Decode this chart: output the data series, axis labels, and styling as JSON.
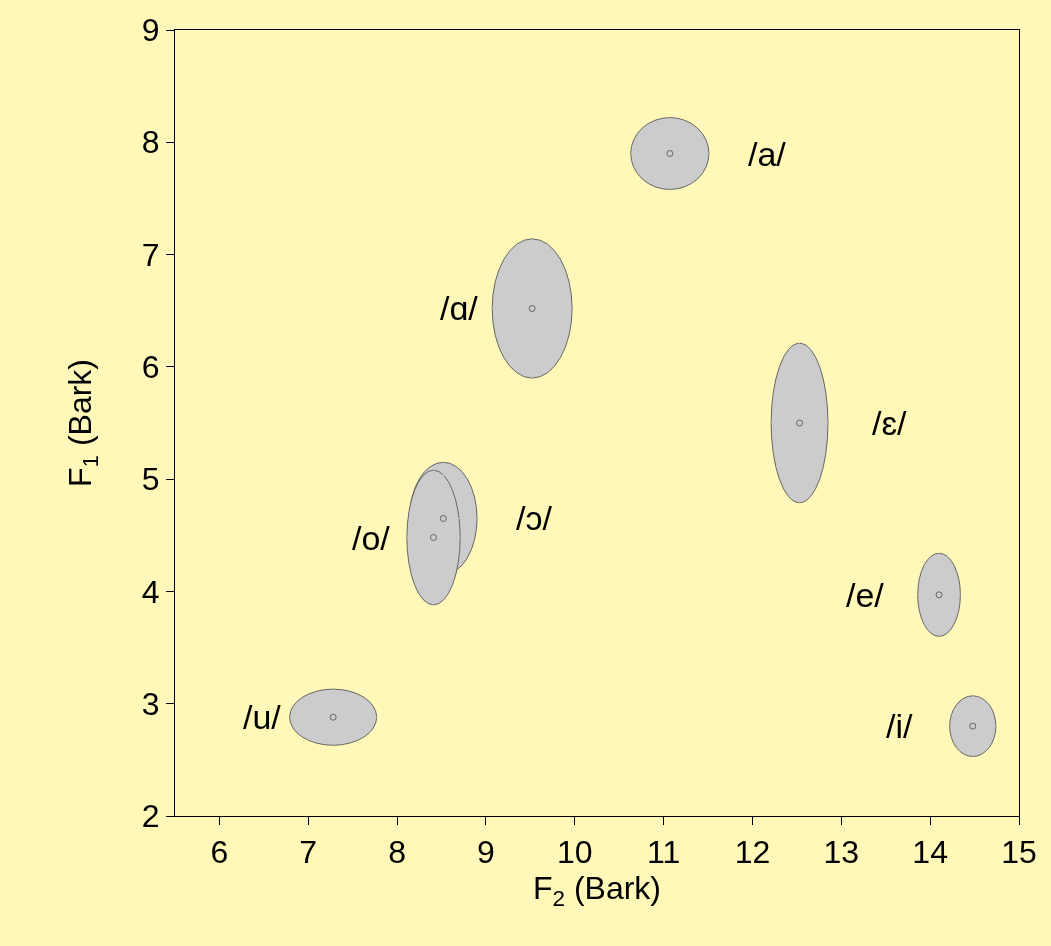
{
  "chart_data": {
    "type": "scatter",
    "xlabel": "F$_{2}$ (Bark)",
    "ylabel": "F$_{1}$ (Bark)",
    "xlim": [
      5.5,
      15
    ],
    "xticks": [
      6,
      7,
      8,
      9,
      10,
      11,
      12,
      13,
      14,
      15
    ],
    "ylim": [
      2,
      9
    ],
    "yticks": [
      2,
      3,
      4,
      5,
      6,
      7,
      8,
      9
    ],
    "grid": false,
    "series": [
      {
        "color": "#cccccc",
        "x": [
          11.07,
          9.52,
          12.53,
          8.52,
          8.41,
          14.1,
          14.48,
          7.28
        ],
        "values": [
          7.9,
          6.52,
          5.5,
          4.65,
          4.48,
          3.97,
          2.8,
          2.88
        ],
        "xerrors": [
          0.44,
          0.45,
          0.32,
          0.38,
          0.3,
          0.24,
          0.26,
          0.49
        ],
        "errors": [
          0.32,
          0.62,
          0.71,
          0.5,
          0.6,
          0.37,
          0.27,
          0.25
        ]
      }
    ],
    "annotations": [
      {
        "text": "/a/",
        "x": 11.07,
        "y": 7.9
      },
      {
        "text": "/ɑ/",
        "x": 9.52,
        "y": 6.52
      },
      {
        "text": "/ɛ/",
        "x": 12.53,
        "y": 5.5
      },
      {
        "text": "/ɔ/",
        "x": 8.52,
        "y": 4.65
      },
      {
        "text": "/o/",
        "x": 8.41,
        "y": 4.48
      },
      {
        "text": "/e/",
        "x": 14.1,
        "y": 3.97
      },
      {
        "text": "/i/",
        "x": 14.48,
        "y": 2.8
      },
      {
        "text": "/u/",
        "x": 7.28,
        "y": 2.88
      }
    ]
  }
}
